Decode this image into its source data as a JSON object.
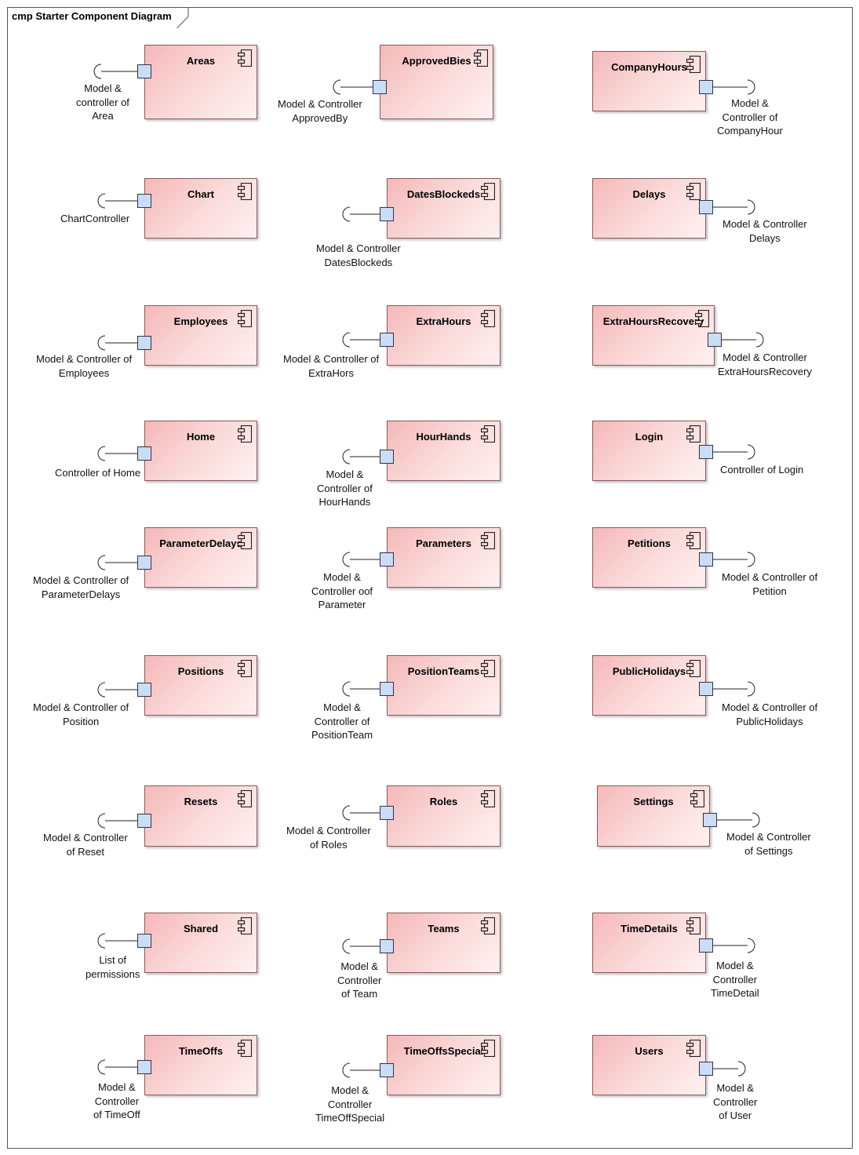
{
  "diagram": {
    "title": "cmp Starter Component Diagram"
  },
  "components": [
    {
      "name": "Areas",
      "interface": "Model &\ncontroller of\nArea"
    },
    {
      "name": "ApprovedBies",
      "interface": "Model & Controller\nApprovedBy"
    },
    {
      "name": "CompanyHours",
      "interface": "Model &\nController of\nCompanyHour"
    },
    {
      "name": "Chart",
      "interface": "ChartController"
    },
    {
      "name": "DatesBlockeds",
      "interface": "Model & Controller\nDatesBlockeds"
    },
    {
      "name": "Delays",
      "interface": "Model & Controller\nDelays"
    },
    {
      "name": "Employees",
      "interface": "Model & Controller of\nEmployees"
    },
    {
      "name": "ExtraHours",
      "interface": "Model & Controller of\nExtraHors"
    },
    {
      "name": "ExtraHoursRecovery",
      "interface": "Model & Controller\nExtraHoursRecovery"
    },
    {
      "name": "Home",
      "interface": "Controller of Home"
    },
    {
      "name": "HourHands",
      "interface": "Model &\nController of\nHourHands"
    },
    {
      "name": "Login",
      "interface": "Controller of Login"
    },
    {
      "name": "ParameterDelays",
      "interface": "Model & Controller of\nParameterDelays"
    },
    {
      "name": "Parameters",
      "interface": "Model &\nController oof\nParameter"
    },
    {
      "name": "Petitions",
      "interface": "Model & Controller of\nPetition"
    },
    {
      "name": "Positions",
      "interface": "Model & Controller of\nPosition"
    },
    {
      "name": "PositionTeams",
      "interface": "Model &\nController of\nPositionTeam"
    },
    {
      "name": "PublicHolidays",
      "interface": "Model & Controller of\nPublicHolidays"
    },
    {
      "name": "Resets",
      "interface": "Model & Controller\nof Reset"
    },
    {
      "name": "Roles",
      "interface": "Model & Controller\nof Roles"
    },
    {
      "name": "Settings",
      "interface": "Model & Controller\nof Settings"
    },
    {
      "name": "Shared",
      "interface": "List of\npermissions"
    },
    {
      "name": "Teams",
      "interface": "Model &\nController\nof Team"
    },
    {
      "name": "TimeDetails",
      "interface": "Model &\nController\nTimeDetail"
    },
    {
      "name": "TimeOffs",
      "interface": "Model &\nController\nof TimeOff"
    },
    {
      "name": "TimeOffsSpecial",
      "interface": "Model &\nController\nTimeOffSpecial"
    },
    {
      "name": "Users",
      "interface": "Model &\nController\nof User"
    }
  ]
}
